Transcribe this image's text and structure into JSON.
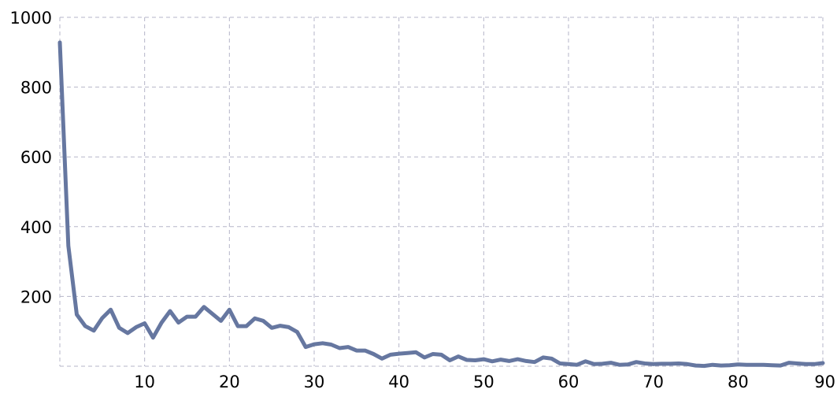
{
  "chart_data": {
    "type": "line",
    "title": "",
    "xlabel": "",
    "ylabel": "",
    "xlim": [
      0,
      90
    ],
    "ylim": [
      0,
      1000
    ],
    "x_ticks": [
      10,
      20,
      30,
      40,
      50,
      60,
      70,
      80,
      90
    ],
    "y_ticks": [
      200,
      400,
      600,
      800,
      1000
    ],
    "x_tick_labels": [
      "10",
      "20",
      "30",
      "40",
      "50",
      "60",
      "70",
      "80",
      "90"
    ],
    "y_tick_labels": [
      "200",
      "400",
      "600",
      "800",
      "1000"
    ],
    "grid": true,
    "legend": "none",
    "series": [
      {
        "color": "#6677a0",
        "x": [
          0,
          1,
          2,
          3,
          4,
          5,
          6,
          7,
          8,
          9,
          10,
          11,
          12,
          13,
          14,
          15,
          16,
          17,
          18,
          19,
          20,
          21,
          22,
          23,
          24,
          25,
          26,
          27,
          28,
          29,
          30,
          31,
          32,
          33,
          34,
          35,
          36,
          37,
          38,
          39,
          40,
          41,
          42,
          43,
          44,
          45,
          46,
          47,
          48,
          49,
          50,
          51,
          52,
          53,
          54,
          55,
          56,
          57,
          58,
          59,
          60,
          61,
          62,
          63,
          64,
          65,
          66,
          67,
          68,
          69,
          70,
          71,
          72,
          73,
          74,
          75,
          76,
          77,
          78,
          79,
          80,
          81,
          82,
          83,
          84,
          85,
          86,
          87,
          88,
          89,
          90
        ],
        "y": [
          928,
          345,
          148,
          115,
          102,
          138,
          162,
          110,
          95,
          112,
          123,
          82,
          125,
          158,
          125,
          142,
          142,
          170,
          150,
          130,
          162,
          115,
          115,
          137,
          130,
          110,
          116,
          112,
          98,
          55,
          63,
          66,
          62,
          52,
          55,
          45,
          45,
          35,
          22,
          33,
          36,
          38,
          40,
          25,
          35,
          33,
          17,
          28,
          18,
          17,
          20,
          14,
          19,
          15,
          20,
          15,
          12,
          25,
          22,
          8,
          6,
          4,
          14,
          6,
          7,
          10,
          4,
          5,
          12,
          8,
          6,
          7,
          7,
          8,
          6,
          2,
          1,
          4,
          2,
          3,
          5,
          4,
          4,
          4,
          3,
          2,
          10,
          8,
          6,
          6,
          9
        ]
      }
    ]
  }
}
